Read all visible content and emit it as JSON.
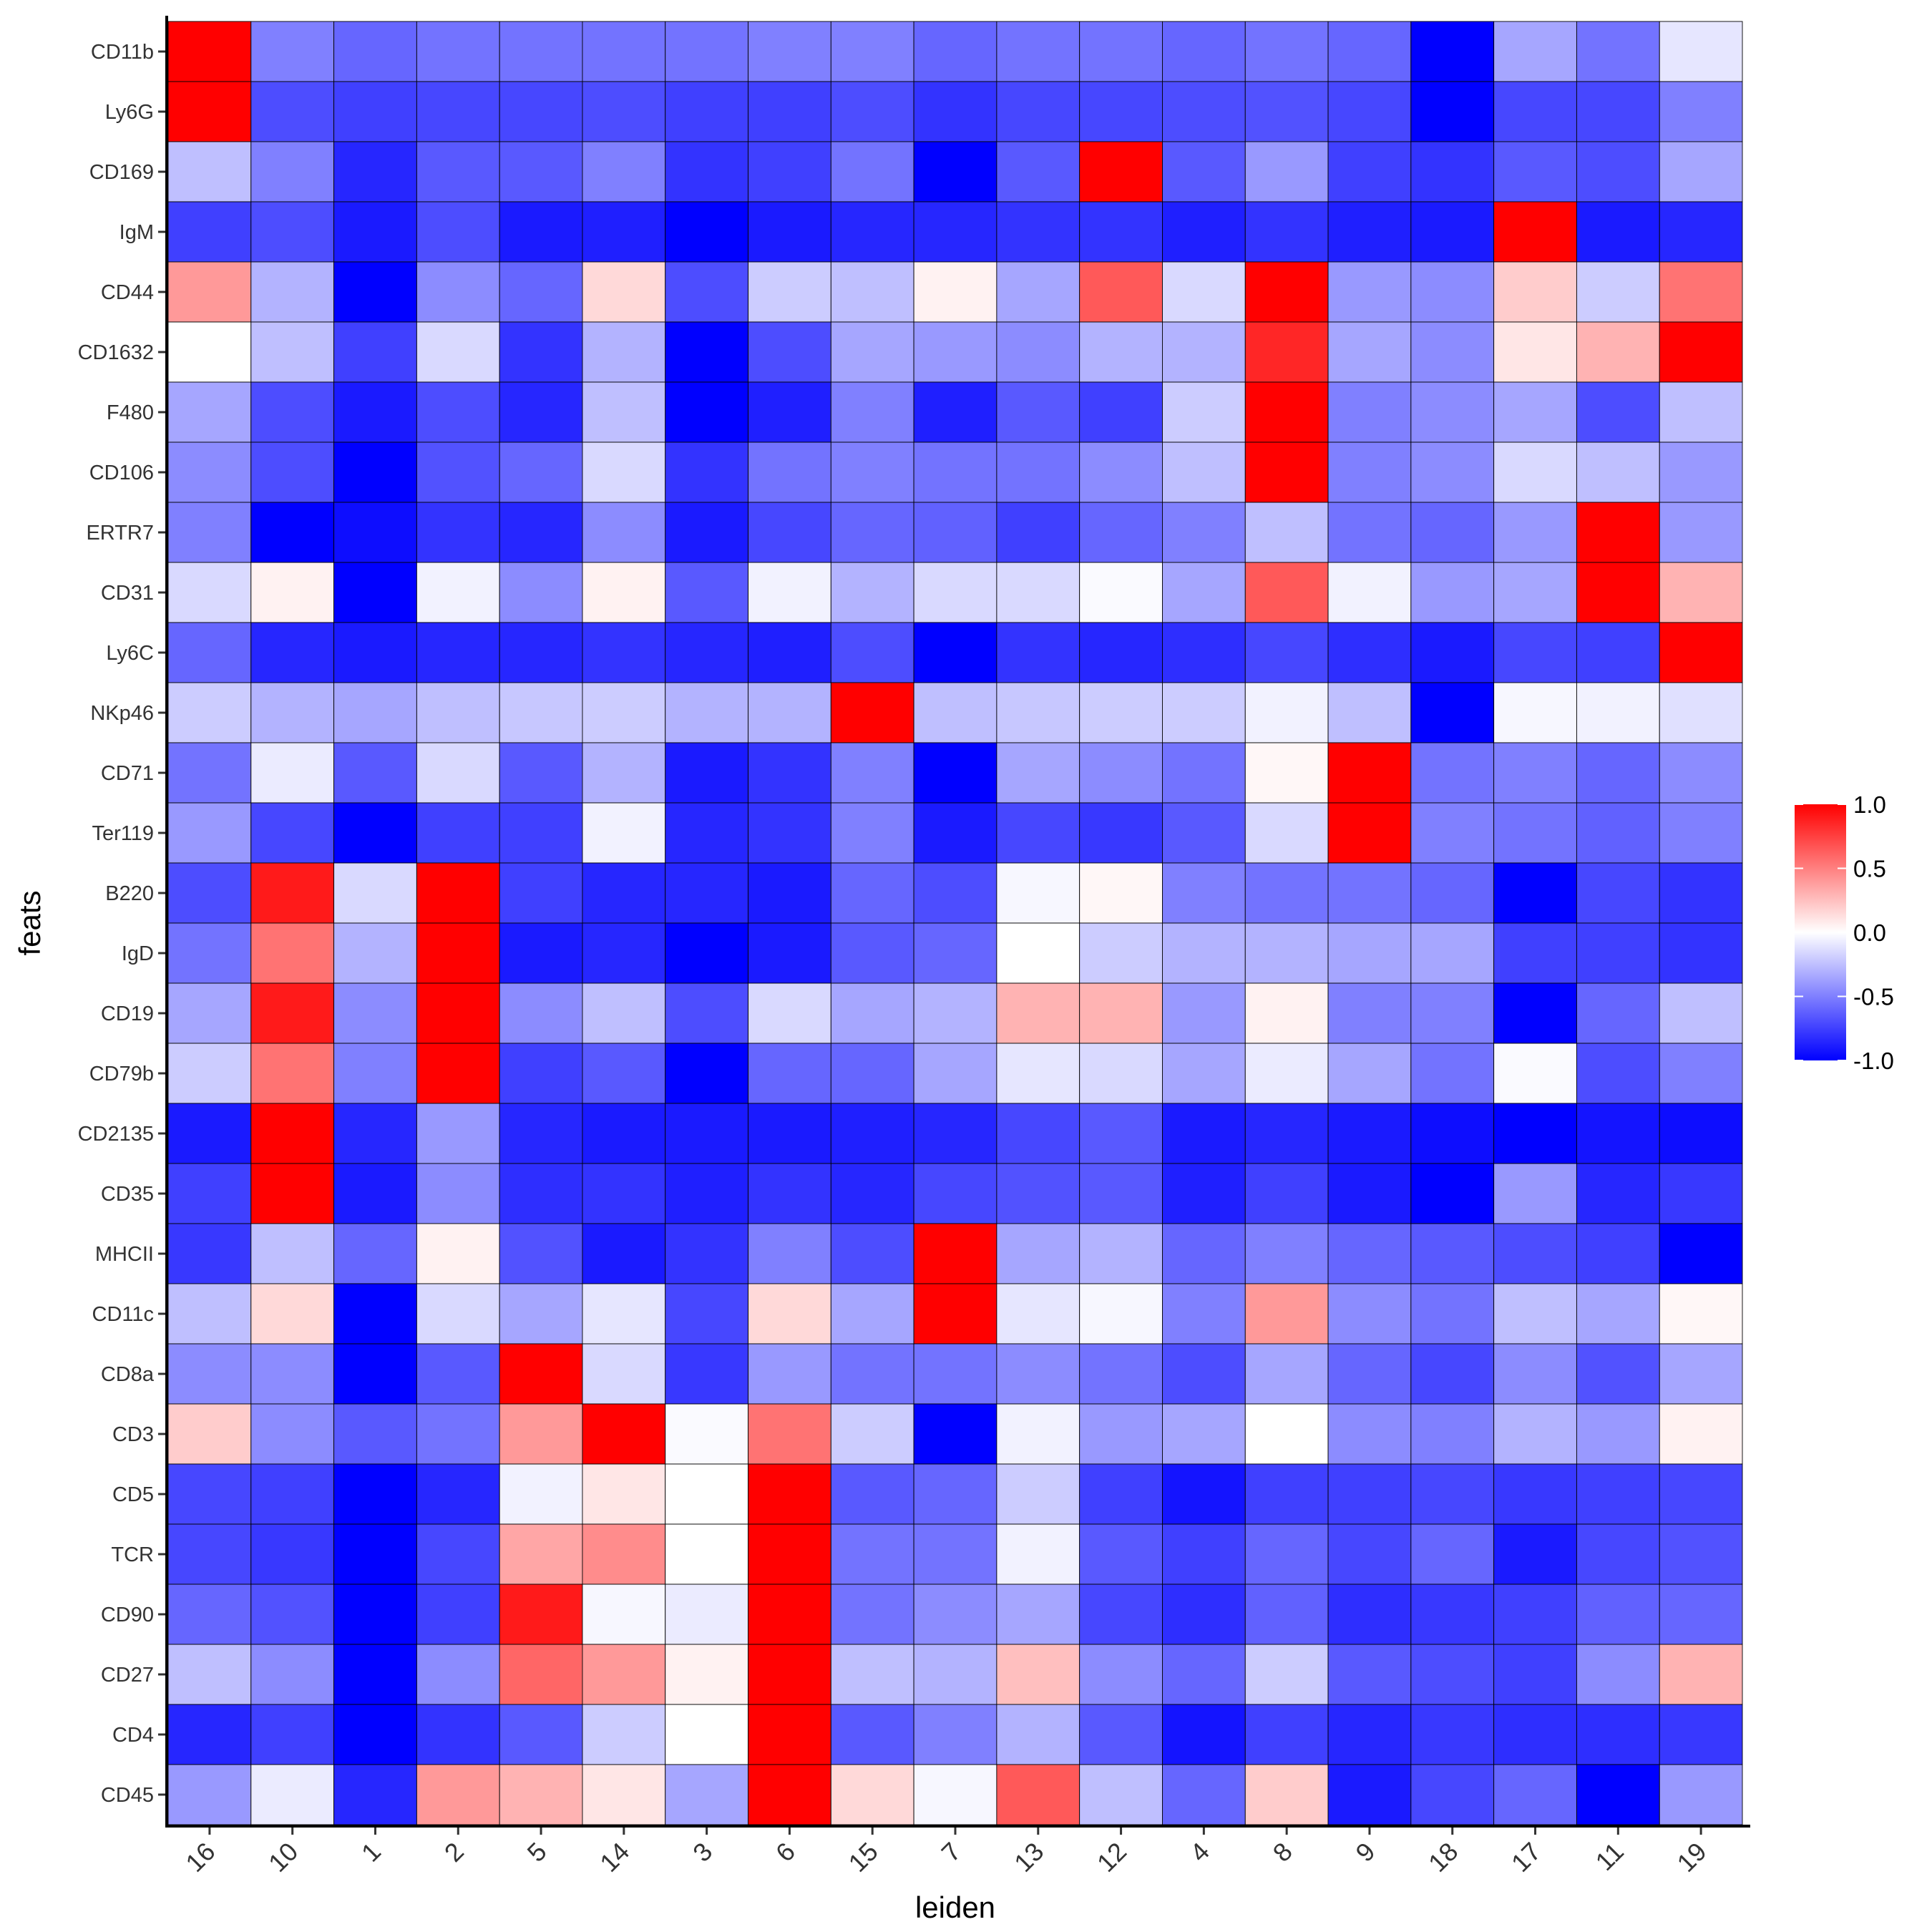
{
  "chart_data": {
    "type": "heatmap",
    "title": "",
    "xlabel": "leiden",
    "ylabel": "feats",
    "x_categories": [
      "16",
      "10",
      "1",
      "2",
      "5",
      "14",
      "3",
      "6",
      "15",
      "7",
      "13",
      "12",
      "4",
      "8",
      "9",
      "18",
      "17",
      "11",
      "19"
    ],
    "y_categories": [
      "CD11b",
      "Ly6G",
      "CD169",
      "IgM",
      "CD44",
      "CD1632",
      "F480",
      "CD106",
      "ERTR7",
      "CD31",
      "Ly6C",
      "NKp46",
      "CD71",
      "Ter119",
      "B220",
      "IgD",
      "CD19",
      "CD79b",
      "CD2135",
      "CD35",
      "MHCII",
      "CD11c",
      "CD8a",
      "CD3",
      "CD5",
      "TCR",
      "CD90",
      "CD27",
      "CD4",
      "CD45"
    ],
    "values": [
      [
        1.0,
        -0.5,
        -0.6,
        -0.55,
        -0.55,
        -0.55,
        -0.55,
        -0.5,
        -0.5,
        -0.6,
        -0.55,
        -0.55,
        -0.6,
        -0.55,
        -0.6,
        -1.0,
        -0.35,
        -0.55,
        -0.1
      ],
      [
        1.0,
        -0.7,
        -0.75,
        -0.72,
        -0.72,
        -0.7,
        -0.75,
        -0.75,
        -0.7,
        -0.8,
        -0.72,
        -0.72,
        -0.7,
        -0.68,
        -0.72,
        -1.0,
        -0.72,
        -0.72,
        -0.5
      ],
      [
        -0.25,
        -0.5,
        -0.85,
        -0.65,
        -0.65,
        -0.5,
        -0.8,
        -0.75,
        -0.55,
        -1.0,
        -0.65,
        1.0,
        -0.65,
        -0.4,
        -0.75,
        -0.8,
        -0.65,
        -0.7,
        -0.35
      ],
      [
        -0.75,
        -0.7,
        -0.9,
        -0.7,
        -0.9,
        -0.88,
        -1.0,
        -0.9,
        -0.85,
        -0.85,
        -0.8,
        -0.8,
        -0.88,
        -0.8,
        -0.88,
        -0.9,
        1.0,
        -0.9,
        -0.85
      ],
      [
        0.4,
        -0.3,
        -1.0,
        -0.45,
        -0.6,
        0.15,
        -0.7,
        -0.2,
        -0.25,
        0.05,
        -0.35,
        0.65,
        -0.15,
        1.0,
        -0.4,
        -0.45,
        0.2,
        -0.2,
        0.55
      ],
      [
        0.0,
        -0.25,
        -0.75,
        -0.15,
        -0.8,
        -0.3,
        -1.0,
        -0.7,
        -0.35,
        -0.4,
        -0.45,
        -0.3,
        -0.3,
        0.85,
        -0.35,
        -0.45,
        0.1,
        0.3,
        1.0
      ],
      [
        -0.35,
        -0.7,
        -0.9,
        -0.7,
        -0.85,
        -0.25,
        -1.0,
        -0.88,
        -0.5,
        -0.88,
        -0.65,
        -0.75,
        -0.2,
        1.0,
        -0.5,
        -0.45,
        -0.35,
        -0.7,
        -0.25
      ],
      [
        -0.45,
        -0.7,
        -1.0,
        -0.68,
        -0.6,
        -0.15,
        -0.8,
        -0.55,
        -0.5,
        -0.55,
        -0.55,
        -0.45,
        -0.25,
        1.0,
        -0.5,
        -0.45,
        -0.15,
        -0.25,
        -0.4
      ],
      [
        -0.5,
        -1.0,
        -0.95,
        -0.8,
        -0.85,
        -0.45,
        -0.9,
        -0.72,
        -0.6,
        -0.62,
        -0.75,
        -0.6,
        -0.5,
        -0.25,
        -0.55,
        -0.6,
        -0.4,
        1.0,
        -0.4
      ],
      [
        -0.15,
        0.05,
        -1.0,
        -0.05,
        -0.45,
        0.05,
        -0.65,
        -0.05,
        -0.3,
        -0.15,
        -0.15,
        -0.02,
        -0.35,
        0.65,
        -0.05,
        -0.4,
        -0.35,
        1.0,
        0.3
      ],
      [
        -0.6,
        -0.85,
        -0.9,
        -0.85,
        -0.85,
        -0.8,
        -0.85,
        -0.88,
        -0.7,
        -1.0,
        -0.8,
        -0.85,
        -0.82,
        -0.72,
        -0.82,
        -0.9,
        -0.72,
        -0.75,
        1.0
      ],
      [
        -0.2,
        -0.3,
        -0.35,
        -0.25,
        -0.22,
        -0.2,
        -0.3,
        -0.3,
        1.0,
        -0.25,
        -0.22,
        -0.2,
        -0.2,
        -0.05,
        -0.25,
        -1.0,
        -0.03,
        -0.05,
        -0.12
      ],
      [
        -0.55,
        -0.08,
        -0.65,
        -0.15,
        -0.65,
        -0.3,
        -0.9,
        -0.8,
        -0.5,
        -1.0,
        -0.35,
        -0.45,
        -0.55,
        0.03,
        1.0,
        -0.55,
        -0.5,
        -0.6,
        -0.45
      ],
      [
        -0.4,
        -0.72,
        -1.0,
        -0.75,
        -0.75,
        -0.05,
        -0.85,
        -0.8,
        -0.5,
        -0.9,
        -0.72,
        -0.78,
        -0.65,
        -0.15,
        1.0,
        -0.5,
        -0.55,
        -0.62,
        -0.5
      ],
      [
        -0.7,
        0.9,
        -0.15,
        1.0,
        -0.75,
        -0.85,
        -0.85,
        -0.9,
        -0.6,
        -0.7,
        -0.03,
        0.03,
        -0.5,
        -0.55,
        -0.55,
        -0.6,
        -1.0,
        -0.72,
        -0.8
      ],
      [
        -0.55,
        0.55,
        -0.3,
        1.0,
        -0.9,
        -0.85,
        -1.0,
        -0.9,
        -0.65,
        -0.6,
        0.0,
        -0.2,
        -0.3,
        -0.3,
        -0.35,
        -0.35,
        -0.75,
        -0.75,
        -0.8
      ],
      [
        -0.35,
        0.9,
        -0.45,
        1.0,
        -0.45,
        -0.25,
        -0.7,
        -0.15,
        -0.35,
        -0.3,
        0.3,
        0.3,
        -0.4,
        0.05,
        -0.5,
        -0.5,
        -1.0,
        -0.6,
        -0.25
      ],
      [
        -0.2,
        0.55,
        -0.5,
        1.0,
        -0.75,
        -0.65,
        -1.0,
        -0.6,
        -0.6,
        -0.35,
        -0.1,
        -0.15,
        -0.35,
        -0.08,
        -0.35,
        -0.55,
        -0.02,
        -0.7,
        -0.5
      ],
      [
        -0.9,
        1.0,
        -0.85,
        -0.4,
        -0.85,
        -0.9,
        -0.9,
        -0.9,
        -0.88,
        -0.85,
        -0.72,
        -0.65,
        -0.9,
        -0.85,
        -0.9,
        -0.95,
        -1.0,
        -0.92,
        -0.95
      ],
      [
        -0.75,
        1.0,
        -0.9,
        -0.45,
        -0.82,
        -0.8,
        -0.88,
        -0.8,
        -0.85,
        -0.72,
        -0.68,
        -0.65,
        -0.88,
        -0.75,
        -0.9,
        -1.0,
        -0.4,
        -0.85,
        -0.78
      ],
      [
        -0.78,
        -0.25,
        -0.6,
        0.05,
        -0.68,
        -0.9,
        -0.8,
        -0.5,
        -0.7,
        1.0,
        -0.35,
        -0.3,
        -0.6,
        -0.5,
        -0.6,
        -0.65,
        -0.7,
        -0.75,
        -1.0
      ],
      [
        -0.25,
        0.15,
        -1.0,
        -0.15,
        -0.35,
        -0.1,
        -0.72,
        0.15,
        -0.35,
        1.0,
        -0.1,
        -0.03,
        -0.5,
        0.4,
        -0.45,
        -0.55,
        -0.25,
        -0.35,
        0.03
      ],
      [
        -0.45,
        -0.45,
        -1.0,
        -0.65,
        1.0,
        -0.15,
        -0.78,
        -0.4,
        -0.55,
        -0.55,
        -0.45,
        -0.55,
        -0.7,
        -0.35,
        -0.6,
        -0.72,
        -0.45,
        -0.68,
        -0.35
      ],
      [
        0.2,
        -0.45,
        -0.65,
        -0.55,
        0.4,
        1.0,
        -0.02,
        0.55,
        -0.2,
        -1.0,
        -0.05,
        -0.4,
        -0.35,
        0.0,
        -0.45,
        -0.5,
        -0.3,
        -0.4,
        0.05
      ],
      [
        -0.72,
        -0.75,
        -1.0,
        -0.85,
        -0.05,
        0.1,
        0.0,
        1.0,
        -0.65,
        -0.6,
        -0.2,
        -0.75,
        -0.92,
        -0.75,
        -0.75,
        -0.72,
        -0.78,
        -0.75,
        -0.72
      ],
      [
        -0.72,
        -0.78,
        -1.0,
        -0.72,
        0.35,
        0.45,
        0.0,
        1.0,
        -0.55,
        -0.55,
        -0.05,
        -0.65,
        -0.75,
        -0.6,
        -0.72,
        -0.6,
        -0.9,
        -0.72,
        -0.68
      ],
      [
        -0.6,
        -0.68,
        -1.0,
        -0.75,
        0.9,
        -0.03,
        -0.08,
        1.0,
        -0.55,
        -0.45,
        -0.35,
        -0.72,
        -0.82,
        -0.62,
        -0.82,
        -0.78,
        -0.75,
        -0.62,
        -0.6
      ],
      [
        -0.25,
        -0.45,
        -1.0,
        -0.45,
        0.6,
        0.4,
        0.05,
        1.0,
        -0.25,
        -0.3,
        0.25,
        -0.45,
        -0.6,
        -0.2,
        -0.65,
        -0.7,
        -0.75,
        -0.45,
        0.3
      ],
      [
        -0.85,
        -0.75,
        -1.0,
        -0.8,
        -0.65,
        -0.2,
        0.0,
        1.0,
        -0.65,
        -0.5,
        -0.3,
        -0.65,
        -0.92,
        -0.75,
        -0.85,
        -0.78,
        -0.82,
        -0.82,
        -0.78
      ],
      [
        -0.4,
        -0.08,
        -0.85,
        0.4,
        0.3,
        0.1,
        -0.35,
        1.0,
        0.15,
        -0.03,
        0.65,
        -0.25,
        -0.6,
        0.2,
        -0.9,
        -0.72,
        -0.6,
        -1.0,
        -0.4
      ]
    ],
    "color_scale": {
      "low": "#0000ff",
      "mid": "#ffffff",
      "high": "#ff0000",
      "domain": [
        -1.0,
        0.0,
        1.0
      ]
    },
    "legend": {
      "position": "right",
      "ticks": [
        "1.0",
        "0.5",
        "0.0",
        "-0.5",
        "-1.0"
      ],
      "tick_values": [
        1.0,
        0.5,
        0.0,
        -0.5,
        -1.0
      ]
    },
    "grid": false
  }
}
